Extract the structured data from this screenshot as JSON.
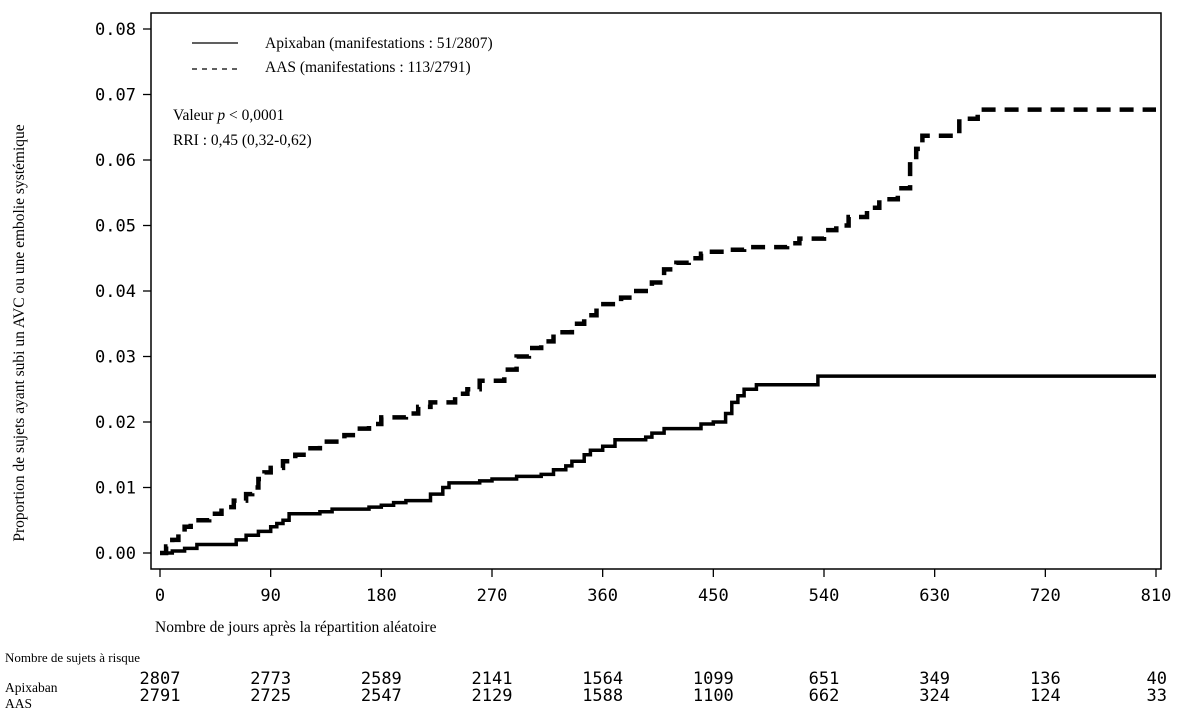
{
  "chart_data": {
    "type": "line",
    "step": true,
    "title": "",
    "xlabel": "Nombre de jours après la répartition aléatoire",
    "ylabel": "Proportion de sujets ayant subi un AVC ou une embolie systémique",
    "xlim": [
      0,
      810
    ],
    "ylim": [
      0,
      0.08
    ],
    "x_ticks": [
      "0",
      "90",
      "180",
      "270",
      "360",
      "450",
      "540",
      "630",
      "720",
      "810"
    ],
    "y_ticks": [
      "0.00",
      "0.01",
      "0.02",
      "0.03",
      "0.04",
      "0.05",
      "0.06",
      "0.07",
      "0.08"
    ],
    "grid": false,
    "legend_position": "top-left",
    "legend": [
      {
        "label": "Apixaban (manifestations : 51/2807)",
        "style": "solid"
      },
      {
        "label": "AAS (manifestations : 113/2791)",
        "style": "dashed"
      }
    ],
    "annotations": {
      "pvalue_prefix": "Valeur ",
      "pvalue_p": "p",
      "pvalue_rest": " < 0,0001",
      "rri": "RRI : 0,45 (0,32-0,62)"
    },
    "series": [
      {
        "style": "solid",
        "points": [
          [
            0,
            0
          ],
          [
            5,
            0
          ],
          [
            10,
            0.0003
          ],
          [
            20,
            0.0007
          ],
          [
            30,
            0.0013
          ],
          [
            60,
            0.0013
          ],
          [
            62,
            0.002
          ],
          [
            70,
            0.0027
          ],
          [
            80,
            0.0033
          ],
          [
            90,
            0.004
          ],
          [
            95,
            0.0045
          ],
          [
            100,
            0.005
          ],
          [
            105,
            0.006
          ],
          [
            130,
            0.0063
          ],
          [
            140,
            0.0067
          ],
          [
            170,
            0.007
          ],
          [
            180,
            0.0073
          ],
          [
            190,
            0.0077
          ],
          [
            200,
            0.008
          ],
          [
            220,
            0.009
          ],
          [
            230,
            0.01
          ],
          [
            235,
            0.0107
          ],
          [
            260,
            0.011
          ],
          [
            270,
            0.0113
          ],
          [
            290,
            0.0117
          ],
          [
            310,
            0.012
          ],
          [
            320,
            0.0127
          ],
          [
            330,
            0.0133
          ],
          [
            335,
            0.014
          ],
          [
            345,
            0.015
          ],
          [
            350,
            0.0157
          ],
          [
            360,
            0.0163
          ],
          [
            370,
            0.0173
          ],
          [
            395,
            0.0177
          ],
          [
            400,
            0.0183
          ],
          [
            410,
            0.019
          ],
          [
            440,
            0.0197
          ],
          [
            450,
            0.02
          ],
          [
            460,
            0.0213
          ],
          [
            465,
            0.023
          ],
          [
            470,
            0.024
          ],
          [
            475,
            0.025
          ],
          [
            485,
            0.0257
          ],
          [
            535,
            0.027
          ],
          [
            810,
            0.027
          ]
        ]
      },
      {
        "style": "dashed",
        "points": [
          [
            0,
            0
          ],
          [
            5,
            0.001
          ],
          [
            10,
            0.002
          ],
          [
            15,
            0.003
          ],
          [
            20,
            0.004
          ],
          [
            25,
            0.005
          ],
          [
            40,
            0.006
          ],
          [
            50,
            0.007
          ],
          [
            60,
            0.008
          ],
          [
            70,
            0.009
          ],
          [
            75,
            0.01
          ],
          [
            80,
            0.0113
          ],
          [
            85,
            0.0123
          ],
          [
            90,
            0.013
          ],
          [
            100,
            0.014
          ],
          [
            110,
            0.015
          ],
          [
            120,
            0.016
          ],
          [
            130,
            0.017
          ],
          [
            150,
            0.018
          ],
          [
            160,
            0.019
          ],
          [
            170,
            0.0197
          ],
          [
            180,
            0.0207
          ],
          [
            200,
            0.0213
          ],
          [
            210,
            0.0223
          ],
          [
            220,
            0.023
          ],
          [
            240,
            0.0243
          ],
          [
            250,
            0.025
          ],
          [
            260,
            0.0263
          ],
          [
            280,
            0.028
          ],
          [
            290,
            0.03
          ],
          [
            300,
            0.0313
          ],
          [
            310,
            0.0323
          ],
          [
            320,
            0.0337
          ],
          [
            335,
            0.035
          ],
          [
            345,
            0.0363
          ],
          [
            355,
            0.038
          ],
          [
            375,
            0.039
          ],
          [
            385,
            0.04
          ],
          [
            400,
            0.0413
          ],
          [
            410,
            0.0433
          ],
          [
            420,
            0.0443
          ],
          [
            430,
            0.045
          ],
          [
            440,
            0.0457
          ],
          [
            445,
            0.046
          ],
          [
            460,
            0.0463
          ],
          [
            475,
            0.0467
          ],
          [
            510,
            0.0473
          ],
          [
            520,
            0.048
          ],
          [
            540,
            0.0493
          ],
          [
            550,
            0.05
          ],
          [
            560,
            0.0513
          ],
          [
            575,
            0.0527
          ],
          [
            585,
            0.054
          ],
          [
            600,
            0.0557
          ],
          [
            610,
            0.0597
          ],
          [
            615,
            0.0617
          ],
          [
            620,
            0.0637
          ],
          [
            640,
            0.0637
          ],
          [
            650,
            0.0663
          ],
          [
            665,
            0.0677
          ],
          [
            810,
            0.0677
          ]
        ]
      }
    ],
    "risk_table": {
      "title": "Nombre de sujets à risque",
      "rows": [
        {
          "label": "Apixaban",
          "values": [
            "2807",
            "2773",
            "2589",
            "2141",
            "1564",
            "1099",
            "651",
            "349",
            "136",
            "40"
          ]
        },
        {
          "label": "AAS",
          "values": [
            "2791",
            "2725",
            "2547",
            "2129",
            "1588",
            "1100",
            "662",
            "324",
            "124",
            "33"
          ]
        }
      ]
    }
  }
}
